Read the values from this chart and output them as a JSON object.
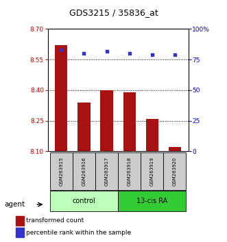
{
  "title": "GDS3215 / 35836_at",
  "samples": [
    "GSM263915",
    "GSM263916",
    "GSM263917",
    "GSM263918",
    "GSM263919",
    "GSM263920"
  ],
  "red_values": [
    8.62,
    8.34,
    8.4,
    8.39,
    8.26,
    8.12
  ],
  "blue_values": [
    83,
    80,
    82,
    80,
    79,
    79
  ],
  "ylim_left": [
    8.1,
    8.7
  ],
  "ylim_right": [
    0,
    100
  ],
  "yticks_left": [
    8.1,
    8.25,
    8.4,
    8.55,
    8.7
  ],
  "yticks_right": [
    0,
    25,
    50,
    75,
    100
  ],
  "ytick_labels_right": [
    "0",
    "25",
    "50",
    "75",
    "100%"
  ],
  "groups": [
    {
      "label": "control",
      "indices": [
        0,
        1,
        2
      ],
      "color": "#bbffbb"
    },
    {
      "label": "13-cis RA",
      "indices": [
        3,
        4,
        5
      ],
      "color": "#33cc33"
    }
  ],
  "agent_label": "agent",
  "bar_color": "#aa1111",
  "dot_color": "#3333cc",
  "bar_width": 0.55,
  "left_tick_color": "#cc0000",
  "right_tick_color": "#0000cc",
  "legend_red_label": "transformed count",
  "legend_blue_label": "percentile rank within the sample",
  "background_sample": "#cccccc",
  "gridline_ticks": [
    8.25,
    8.4,
    8.55
  ],
  "dot_size": 12
}
